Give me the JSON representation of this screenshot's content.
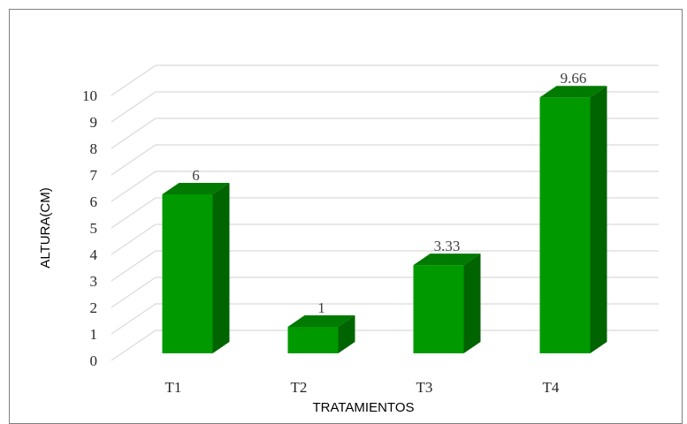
{
  "chart_data": {
    "type": "bar",
    "style": "3d-column",
    "categories": [
      "T1",
      "T2",
      "T3",
      "T4"
    ],
    "values": [
      6,
      1,
      3.33,
      9.66
    ],
    "data_labels": [
      "6",
      "1",
      "3.33",
      "9.66"
    ],
    "title": "",
    "xlabel": "TRATAMIENTOS",
    "ylabel": "ALTURA(CM)",
    "ylim": [
      0,
      10
    ],
    "yticks": [
      "0",
      "1",
      "2",
      "3",
      "4",
      "5",
      "6",
      "7",
      "8",
      "9",
      "10"
    ],
    "grid": true,
    "legend": "none",
    "colors": {
      "bar_front": "#009900",
      "bar_top": "#007a00",
      "bar_side": "#006400",
      "grid": "#d9d9d9",
      "frame": "#7f7f7f"
    }
  }
}
